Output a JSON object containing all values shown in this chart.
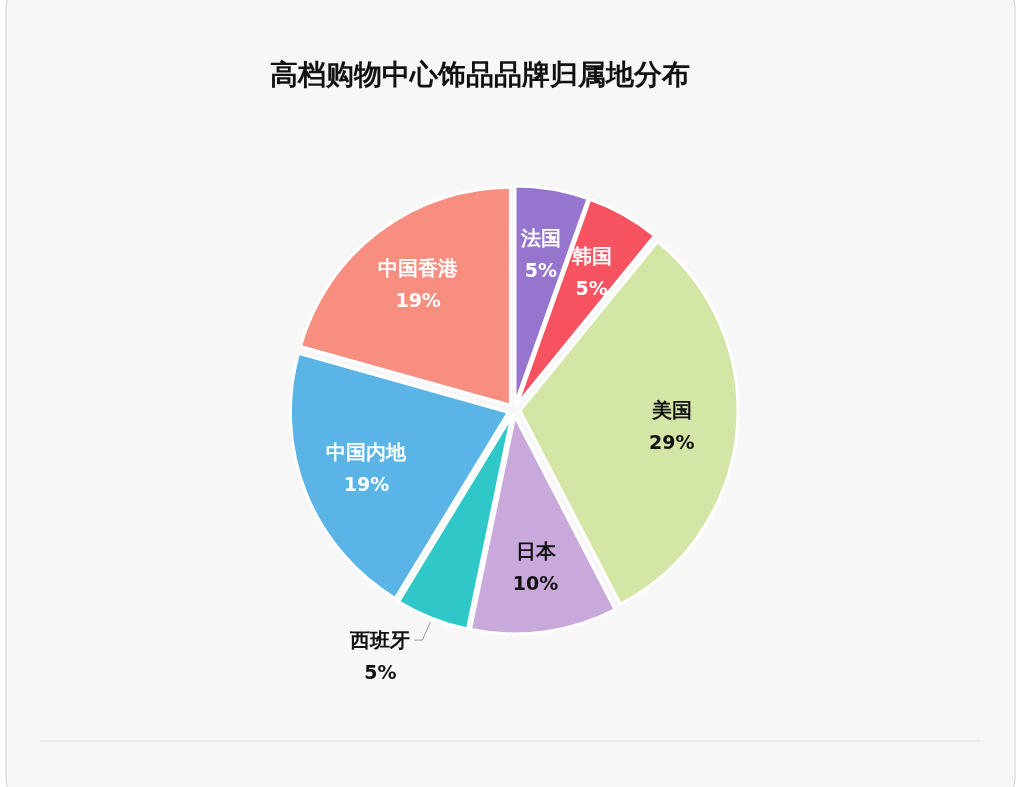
{
  "chart_data": {
    "type": "pie",
    "title": "高档购物中心饰品品牌归属地分布",
    "categories": [
      "法国",
      "韩国",
      "美国",
      "日本",
      "西班牙",
      "中国内地",
      "中国香港"
    ],
    "values": [
      5,
      5,
      29,
      10,
      5,
      19,
      19
    ],
    "value_labels": [
      "5%",
      "5%",
      "29%",
      "10%",
      "5%",
      "19%",
      "19%"
    ],
    "colors": [
      "#9575cd",
      "#f7525f",
      "#d4e6a5",
      "#c9a8dc",
      "#2ec8c8",
      "#5ab4e5",
      "#f88e7f"
    ]
  }
}
